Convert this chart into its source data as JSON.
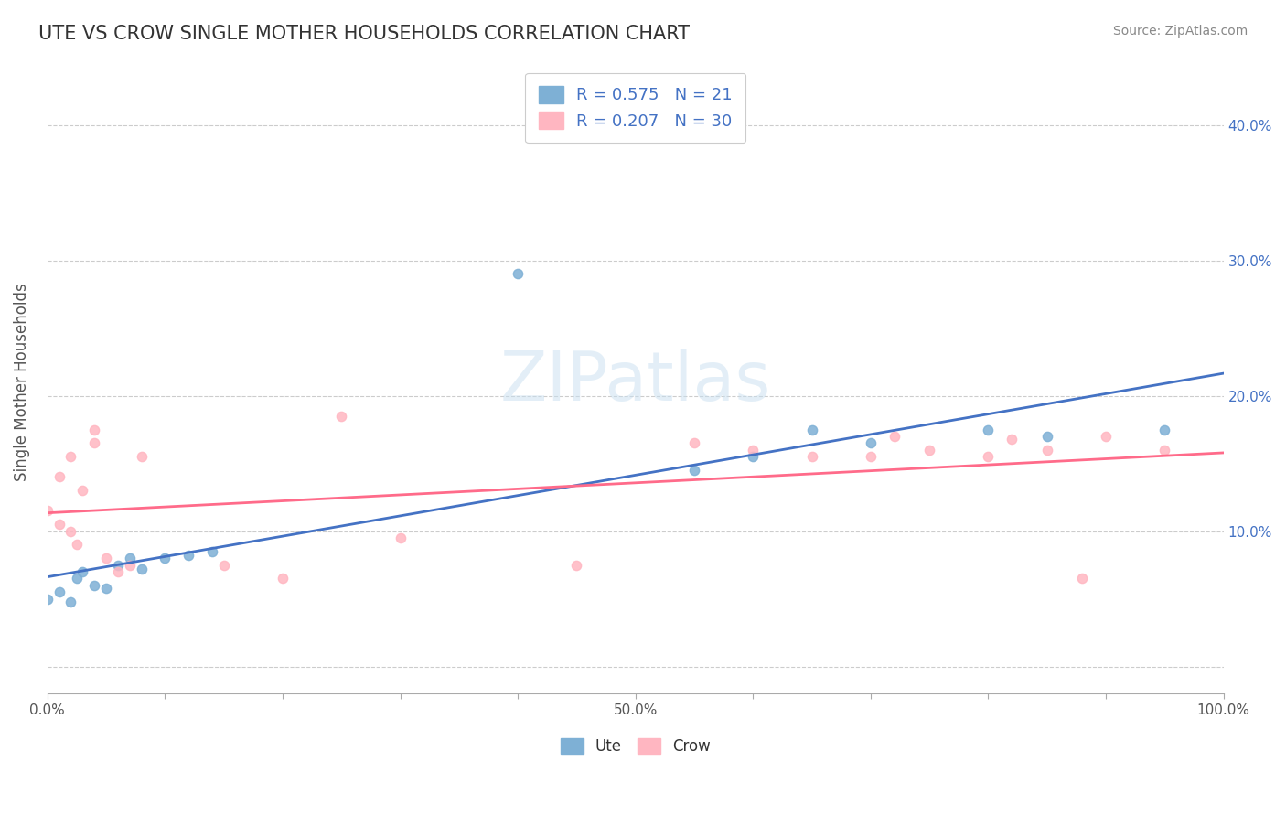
{
  "title": "UTE VS CROW SINGLE MOTHER HOUSEHOLDS CORRELATION CHART",
  "source": "Source: ZipAtlas.com",
  "xlabel": "",
  "ylabel": "Single Mother Households",
  "xlim": [
    0,
    1.0
  ],
  "ylim": [
    -0.02,
    0.44
  ],
  "xtick_labels": [
    "0.0%",
    "",
    "",
    "",
    "",
    "50.0%",
    "",
    "",
    "",
    "",
    "100.0%"
  ],
  "ytick_labels": [
    "",
    "10.0%",
    "20.0%",
    "30.0%",
    "40.0%"
  ],
  "ute_color": "#7EB0D5",
  "crow_color": "#FFB6C1",
  "ute_line_color": "#4472C4",
  "crow_line_color": "#FF6B8A",
  "ute_R": 0.575,
  "ute_N": 21,
  "crow_R": 0.207,
  "crow_N": 30,
  "legend_text_color": "#4472C4",
  "watermark": "ZIPatlas",
  "background_color": "#ffffff",
  "ute_scatter": [
    [
      0.0,
      0.05
    ],
    [
      0.01,
      0.055
    ],
    [
      0.02,
      0.048
    ],
    [
      0.025,
      0.065
    ],
    [
      0.03,
      0.07
    ],
    [
      0.04,
      0.06
    ],
    [
      0.05,
      0.058
    ],
    [
      0.06,
      0.075
    ],
    [
      0.07,
      0.08
    ],
    [
      0.08,
      0.072
    ],
    [
      0.1,
      0.08
    ],
    [
      0.12,
      0.082
    ],
    [
      0.14,
      0.085
    ],
    [
      0.4,
      0.29
    ],
    [
      0.55,
      0.145
    ],
    [
      0.6,
      0.155
    ],
    [
      0.65,
      0.175
    ],
    [
      0.7,
      0.165
    ],
    [
      0.8,
      0.175
    ],
    [
      0.85,
      0.17
    ],
    [
      0.95,
      0.175
    ]
  ],
  "crow_scatter": [
    [
      0.0,
      0.115
    ],
    [
      0.01,
      0.105
    ],
    [
      0.01,
      0.14
    ],
    [
      0.02,
      0.1
    ],
    [
      0.02,
      0.155
    ],
    [
      0.025,
      0.09
    ],
    [
      0.03,
      0.13
    ],
    [
      0.04,
      0.165
    ],
    [
      0.04,
      0.175
    ],
    [
      0.05,
      0.08
    ],
    [
      0.06,
      0.07
    ],
    [
      0.07,
      0.075
    ],
    [
      0.08,
      0.155
    ],
    [
      0.15,
      0.075
    ],
    [
      0.2,
      0.065
    ],
    [
      0.25,
      0.185
    ],
    [
      0.3,
      0.095
    ],
    [
      0.45,
      0.075
    ],
    [
      0.55,
      0.165
    ],
    [
      0.6,
      0.16
    ],
    [
      0.65,
      0.155
    ],
    [
      0.7,
      0.155
    ],
    [
      0.72,
      0.17
    ],
    [
      0.75,
      0.16
    ],
    [
      0.8,
      0.155
    ],
    [
      0.82,
      0.168
    ],
    [
      0.85,
      0.16
    ],
    [
      0.88,
      0.065
    ],
    [
      0.9,
      0.17
    ],
    [
      0.95,
      0.16
    ]
  ]
}
